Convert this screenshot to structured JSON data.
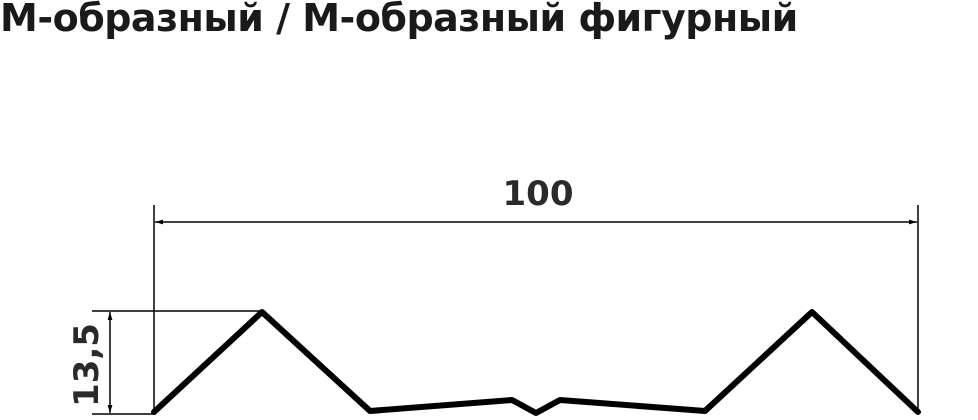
{
  "title": "М-образный / М-образный фигурный",
  "dimensions": {
    "width_label": "100",
    "height_label": "13,5"
  },
  "colors": {
    "line": "#000000",
    "text": "#1a1a1a"
  }
}
